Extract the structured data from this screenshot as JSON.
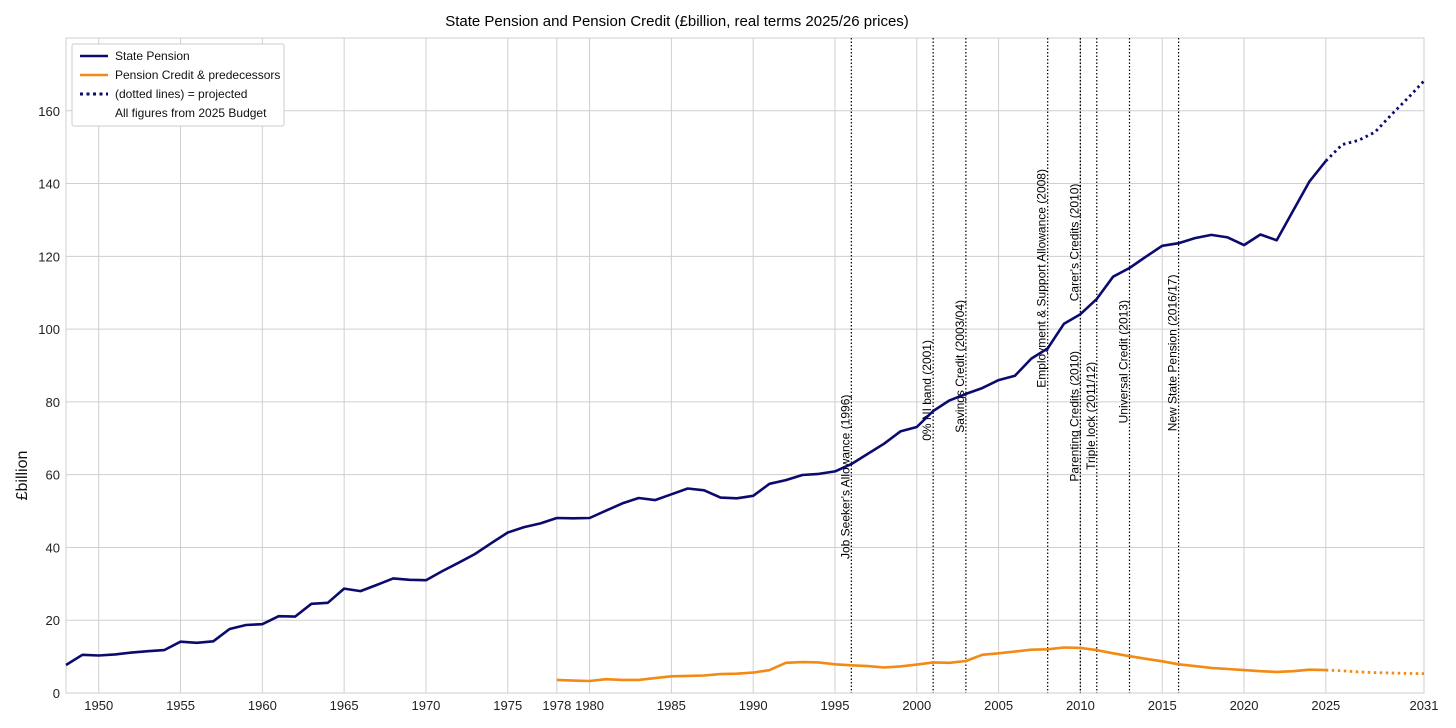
{
  "chart_data": {
    "type": "line",
    "title": "State Pension and Pension Credit (£billion, real terms 2025/26 prices)",
    "xlabel": "",
    "ylabel": "£billion",
    "xlim": [
      1948,
      2031
    ],
    "ylim": [
      0,
      180
    ],
    "grid": true,
    "legend_position": "top-left",
    "x_ticks": [
      1950,
      1955,
      1960,
      1965,
      1970,
      1975,
      1978,
      1980,
      1985,
      1990,
      1995,
      2000,
      2005,
      2010,
      2015,
      2020,
      2025,
      2031
    ],
    "x_tick_labels": [
      "1950",
      "1955",
      "1960",
      "1965",
      "1970",
      "1975",
      "1978",
      "1980",
      "1985",
      "1990",
      "1995",
      "2000",
      "2005",
      "2010",
      "2015",
      "2020",
      "2025",
      "2031"
    ],
    "y_ticks": [
      0,
      20,
      40,
      60,
      80,
      100,
      120,
      140,
      160
    ],
    "y_tick_labels": [
      "0",
      "20",
      "40",
      "60",
      "80",
      "100",
      "120",
      "140",
      "160"
    ],
    "colors": {
      "state_pension": "#0b0b6e",
      "pension_credit": "#f28a14",
      "annotation": "#000000",
      "grid": "#cfcfcf"
    },
    "series": [
      {
        "name": "State Pension",
        "actual": [
          [
            1948,
            7.7
          ],
          [
            1949,
            10.5
          ],
          [
            1950,
            10.3
          ],
          [
            1951,
            10.6
          ],
          [
            1952,
            11.1
          ],
          [
            1953,
            11.5
          ],
          [
            1954,
            11.8
          ],
          [
            1955,
            14.1
          ],
          [
            1956,
            13.8
          ],
          [
            1957,
            14.2
          ],
          [
            1958,
            17.6
          ],
          [
            1959,
            18.7
          ],
          [
            1960,
            18.9
          ],
          [
            1961,
            21.1
          ],
          [
            1962,
            21.0
          ],
          [
            1963,
            24.5
          ],
          [
            1964,
            24.8
          ],
          [
            1965,
            28.7
          ],
          [
            1966,
            28.0
          ],
          [
            1967,
            29.7
          ],
          [
            1968,
            31.5
          ],
          [
            1969,
            31.1
          ],
          [
            1970,
            31.0
          ],
          [
            1971,
            33.5
          ],
          [
            1972,
            35.8
          ],
          [
            1973,
            38.2
          ],
          [
            1974,
            41.2
          ],
          [
            1975,
            44.1
          ],
          [
            1976,
            45.6
          ],
          [
            1977,
            46.6
          ],
          [
            1978,
            48.1
          ],
          [
            1979,
            48.0
          ],
          [
            1980,
            48.1
          ],
          [
            1981,
            50.1
          ],
          [
            1982,
            52.1
          ],
          [
            1983,
            53.6
          ],
          [
            1984,
            53.0
          ],
          [
            1985,
            54.6
          ],
          [
            1986,
            56.2
          ],
          [
            1987,
            55.7
          ],
          [
            1988,
            53.7
          ],
          [
            1989,
            53.5
          ],
          [
            1990,
            54.2
          ],
          [
            1991,
            57.5
          ],
          [
            1992,
            58.5
          ],
          [
            1993,
            59.9
          ],
          [
            1994,
            60.2
          ],
          [
            1995,
            60.9
          ],
          [
            1996,
            62.9
          ],
          [
            1997,
            65.7
          ],
          [
            1998,
            68.5
          ],
          [
            1999,
            71.9
          ],
          [
            2000,
            73.1
          ],
          [
            2001,
            77.5
          ],
          [
            2002,
            80.4
          ],
          [
            2003,
            82.2
          ],
          [
            2004,
            83.8
          ],
          [
            2005,
            86.0
          ],
          [
            2006,
            87.2
          ],
          [
            2007,
            91.9
          ],
          [
            2008,
            94.7
          ],
          [
            2009,
            101.5
          ],
          [
            2010,
            104.1
          ],
          [
            2011,
            108.3
          ],
          [
            2012,
            114.4
          ],
          [
            2013,
            116.8
          ],
          [
            2014,
            119.9
          ],
          [
            2015,
            122.9
          ],
          [
            2016,
            123.6
          ],
          [
            2017,
            125.0
          ],
          [
            2018,
            125.9
          ],
          [
            2019,
            125.2
          ],
          [
            2020,
            123.1
          ],
          [
            2021,
            126.0
          ],
          [
            2022,
            124.4
          ],
          [
            2023,
            132.5
          ],
          [
            2024,
            140.6
          ],
          [
            2025,
            146.2
          ]
        ],
        "projected": [
          [
            2025,
            146.2
          ],
          [
            2026,
            150.7
          ],
          [
            2027,
            151.9
          ],
          [
            2028,
            154.1
          ],
          [
            2029,
            158.9
          ],
          [
            2030,
            163.4
          ],
          [
            2031,
            168.2
          ]
        ]
      },
      {
        "name": "Pension Credit & predecessors",
        "actual": [
          [
            1978,
            3.6
          ],
          [
            1979,
            3.4
          ],
          [
            1980,
            3.3
          ],
          [
            1981,
            3.8
          ],
          [
            1982,
            3.6
          ],
          [
            1983,
            3.6
          ],
          [
            1984,
            4.1
          ],
          [
            1985,
            4.6
          ],
          [
            1986,
            4.7
          ],
          [
            1987,
            4.8
          ],
          [
            1988,
            5.2
          ],
          [
            1989,
            5.3
          ],
          [
            1990,
            5.6
          ],
          [
            1991,
            6.3
          ],
          [
            1992,
            8.3
          ],
          [
            1993,
            8.5
          ],
          [
            1994,
            8.4
          ],
          [
            1995,
            7.9
          ],
          [
            1996,
            7.6
          ],
          [
            1997,
            7.4
          ],
          [
            1998,
            7.0
          ],
          [
            1999,
            7.3
          ],
          [
            2000,
            7.8
          ],
          [
            2001,
            8.4
          ],
          [
            2002,
            8.3
          ],
          [
            2003,
            8.8
          ],
          [
            2004,
            10.5
          ],
          [
            2005,
            10.9
          ],
          [
            2006,
            11.4
          ],
          [
            2007,
            11.9
          ],
          [
            2008,
            12.0
          ],
          [
            2009,
            12.5
          ],
          [
            2010,
            12.4
          ],
          [
            2011,
            11.8
          ],
          [
            2012,
            10.9
          ],
          [
            2013,
            10.1
          ],
          [
            2014,
            9.4
          ],
          [
            2015,
            8.7
          ],
          [
            2016,
            7.9
          ],
          [
            2017,
            7.4
          ],
          [
            2018,
            6.9
          ],
          [
            2019,
            6.6
          ],
          [
            2020,
            6.3
          ],
          [
            2021,
            6.0
          ],
          [
            2022,
            5.8
          ],
          [
            2023,
            6.0
          ],
          [
            2024,
            6.4
          ],
          [
            2025,
            6.3
          ]
        ],
        "projected": [
          [
            2025,
            6.3
          ],
          [
            2026,
            6.1
          ],
          [
            2027,
            5.8
          ],
          [
            2028,
            5.6
          ],
          [
            2029,
            5.5
          ],
          [
            2030,
            5.4
          ],
          [
            2031,
            5.3
          ]
        ]
      }
    ],
    "annotations": [
      {
        "x": 1996,
        "label": "Job Seeker's Allowance (1996)",
        "top_value": 82
      },
      {
        "x": 2001,
        "label": "0% NI band (2001)",
        "top_value": 97
      },
      {
        "x": 2003,
        "label": "Savings Credit (2003/04)",
        "top_value": 108
      },
      {
        "x": 2008,
        "label": "Employment & Support Allowance (2008)",
        "top_value": 144
      },
      {
        "x": 2010,
        "label": "Carer's Credits (2010)",
        "top_value": 140
      },
      {
        "x": 2010,
        "label": "Parenting Credits (2010)",
        "top_value": 94
      },
      {
        "x": 2011,
        "label": "Triple lock (2011/12)",
        "top_value": 91
      },
      {
        "x": 2013,
        "label": "Universal Credit (2013)",
        "top_value": 108
      },
      {
        "x": 2016,
        "label": "New State Pension (2016/17)",
        "top_value": 115
      }
    ],
    "legend": [
      {
        "label": "State Pension",
        "style": "solid",
        "color": "#0b0b6e"
      },
      {
        "label": "Pension Credit & predecessors",
        "style": "solid",
        "color": "#f28a14"
      },
      {
        "label": "(dotted lines) = projected",
        "style": "dotted",
        "color": "#0b0b6e"
      },
      {
        "label": "All figures from 2025 Budget",
        "style": "none",
        "color": ""
      }
    ]
  }
}
